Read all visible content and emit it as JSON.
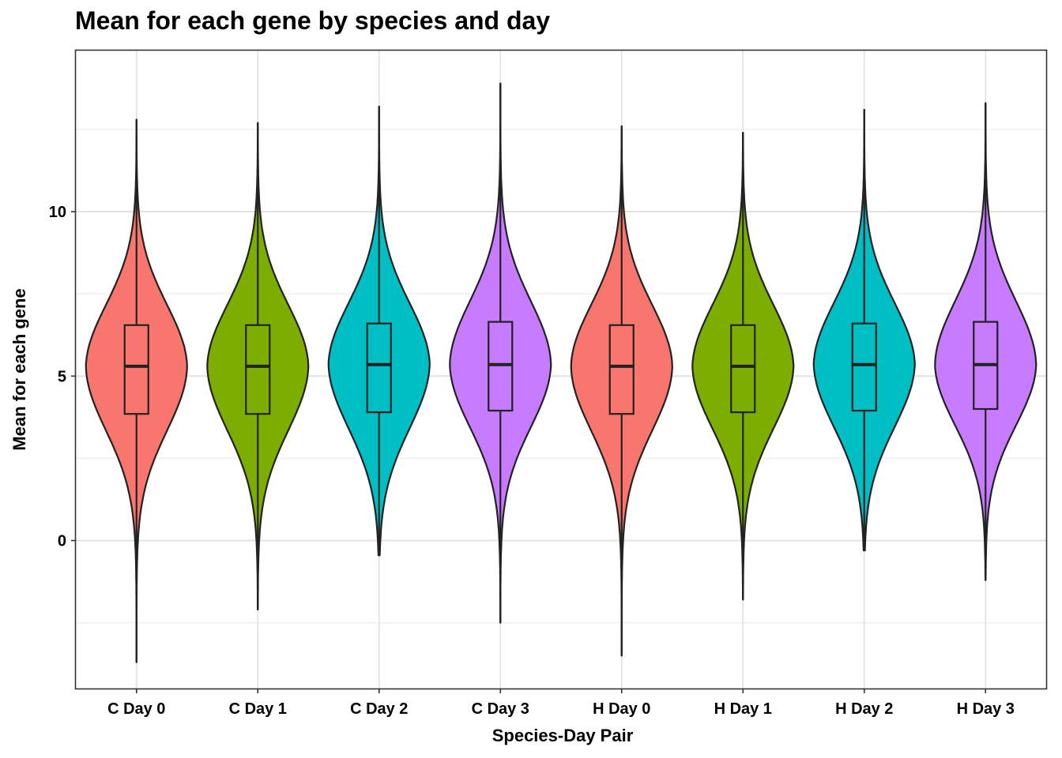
{
  "chart_data": {
    "type": "violin",
    "title": "Mean for each gene by species and day",
    "xlabel": "Species-Day Pair",
    "ylabel": "Mean for each gene",
    "categories": [
      "C Day 0",
      "C Day 1",
      "C Day 2",
      "C Day 3",
      "H Day 0",
      "H Day 1",
      "H Day 2",
      "H Day 3"
    ],
    "y_ticks": [
      0,
      5,
      10
    ],
    "y_tick_labels": [
      "0",
      "5",
      "10"
    ],
    "ylim": [
      -4.5,
      14.9
    ],
    "grid": true,
    "legend": "none",
    "fill_colors": {
      "C Day 0": "#F8766D",
      "C Day 1": "#7CAE00",
      "C Day 2": "#00BFC4",
      "C Day 3": "#C77CFF",
      "H Day 0": "#F8766D",
      "H Day 1": "#7CAE00",
      "H Day 2": "#00BFC4",
      "H Day 3": "#C77CFF"
    },
    "series": [
      {
        "category": "C Day 0",
        "min": -3.7,
        "q1": 3.85,
        "median": 5.3,
        "q3": 6.55,
        "max": 12.8
      },
      {
        "category": "C Day 1",
        "min": -2.1,
        "q1": 3.85,
        "median": 5.3,
        "q3": 6.55,
        "max": 12.7
      },
      {
        "category": "C Day 2",
        "min": -0.45,
        "q1": 3.9,
        "median": 5.35,
        "q3": 6.6,
        "max": 13.2
      },
      {
        "category": "C Day 3",
        "min": -2.5,
        "q1": 3.95,
        "median": 5.35,
        "q3": 6.65,
        "max": 13.9
      },
      {
        "category": "H Day 0",
        "min": -3.5,
        "q1": 3.85,
        "median": 5.3,
        "q3": 6.55,
        "max": 12.6
      },
      {
        "category": "H Day 1",
        "min": -1.8,
        "q1": 3.9,
        "median": 5.3,
        "q3": 6.55,
        "max": 12.4
      },
      {
        "category": "H Day 2",
        "min": -0.3,
        "q1": 3.95,
        "median": 5.35,
        "q3": 6.6,
        "max": 13.1
      },
      {
        "category": "H Day 3",
        "min": -1.2,
        "q1": 4.0,
        "median": 5.35,
        "q3": 6.65,
        "max": 13.3
      }
    ]
  }
}
